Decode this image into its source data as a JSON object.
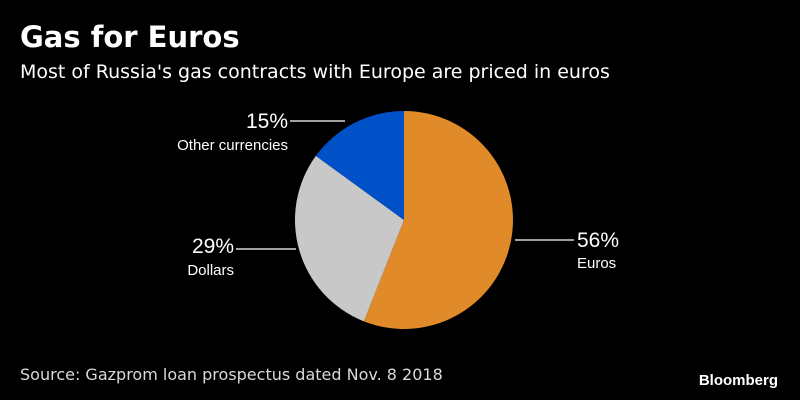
{
  "header": {
    "title": "Gas for Euros",
    "subtitle": "Most of Russia's gas contracts with Europe are priced in euros"
  },
  "footer": {
    "source": "Source: Gazprom loan prospectus dated Nov. 8 2018",
    "brand": "Bloomberg"
  },
  "chart_data": {
    "type": "pie",
    "title": "Gas for Euros",
    "subtitle": "Most of Russia's gas contracts with Europe are priced in euros",
    "start_angle_deg": 0,
    "direction": "clockwise",
    "legend": "none",
    "slices": [
      {
        "label": "Euros",
        "value": 56,
        "value_label": "56%",
        "color": "#e08a2a"
      },
      {
        "label": "Dollars",
        "value": 29,
        "value_label": "29%",
        "color": "#c8c8c8"
      },
      {
        "label": "Other currencies",
        "value": 15,
        "value_label": "15%",
        "color": "#0050c8"
      }
    ]
  }
}
